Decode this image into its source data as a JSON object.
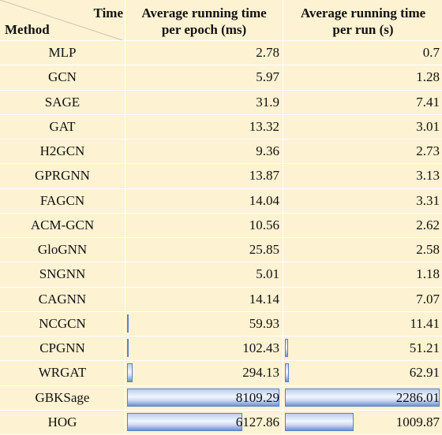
{
  "header": {
    "corner_top": "Time",
    "corner_bottom": "Method",
    "col1_line1": "Average running time",
    "col1_line2": "per epoch (ms)",
    "col2_line1": "Average running time",
    "col2_line2": "per run (s)"
  },
  "rows": [
    {
      "method": "MLP",
      "epoch_ms": "2.78",
      "run_s": "0.7"
    },
    {
      "method": "GCN",
      "epoch_ms": "5.97",
      "run_s": "1.28"
    },
    {
      "method": "SAGE",
      "epoch_ms": "31.9",
      "run_s": "7.41"
    },
    {
      "method": "GAT",
      "epoch_ms": "13.32",
      "run_s": "3.01"
    },
    {
      "method": "H2GCN",
      "epoch_ms": "9.36",
      "run_s": "2.73"
    },
    {
      "method": "GPRGNN",
      "epoch_ms": "13.87",
      "run_s": "3.13"
    },
    {
      "method": "FAGCN",
      "epoch_ms": "14.04",
      "run_s": "3.31"
    },
    {
      "method": "ACM-GCN",
      "epoch_ms": "10.56",
      "run_s": "2.62"
    },
    {
      "method": "GloGNN",
      "epoch_ms": "25.85",
      "run_s": "2.58"
    },
    {
      "method": "SNGNN",
      "epoch_ms": "5.01",
      "run_s": "1.18"
    },
    {
      "method": "CAGNN",
      "epoch_ms": "14.14",
      "run_s": "7.07"
    },
    {
      "method": "NCGCN",
      "epoch_ms": "59.93",
      "run_s": "11.41"
    },
    {
      "method": "CPGNN",
      "epoch_ms": "102.43",
      "run_s": "51.21"
    },
    {
      "method": "WRGAT",
      "epoch_ms": "294.13",
      "run_s": "62.91"
    },
    {
      "method": "GBKSage",
      "epoch_ms": "8109.29",
      "run_s": "2286.01"
    },
    {
      "method": "HOG",
      "epoch_ms": "6127.86",
      "run_s": "1009.87"
    }
  ],
  "data_bars": {
    "color": "#6d92cf",
    "epoch_max": 8109.29,
    "run_max": 2286.01
  }
}
